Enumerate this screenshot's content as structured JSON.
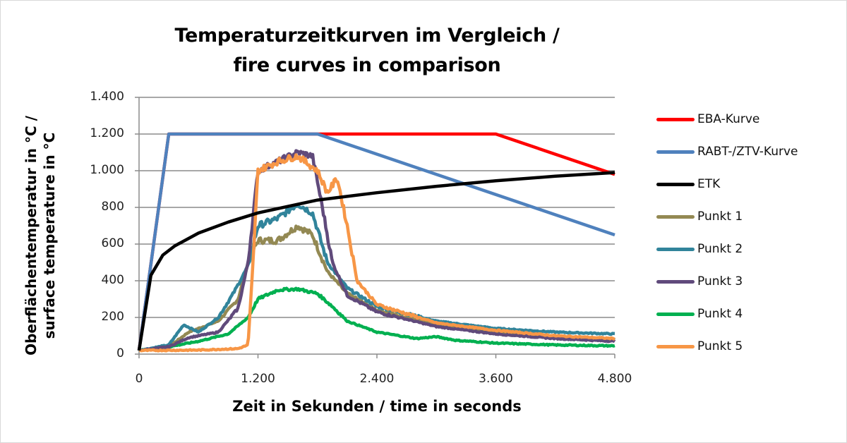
{
  "chart_data": {
    "type": "line",
    "title": "Temperaturzeitkurven im Vergleich / fire  curves in comparison",
    "title_lines": [
      "Temperaturzeitkurven im Vergleich /",
      "fire  curves in comparison"
    ],
    "xlabel": "Zeit in Sekunden / time in seconds",
    "ylabel": "Oberflächentemperatur in °C / surface temperature in °C",
    "ylabel_lines": [
      "Oberflächentemperatur in °C /",
      "surface temperature in °C"
    ],
    "xlim": [
      0,
      4800
    ],
    "ylim": [
      0,
      1400
    ],
    "x_ticks": [
      "0",
      "1.200",
      "2.400",
      "3.600",
      "4.800"
    ],
    "y_ticks": [
      "0",
      "200",
      "400",
      "600",
      "800",
      "1.000",
      "1.200",
      "1.400"
    ],
    "grid": "horizontal",
    "legend_position": "right",
    "series": [
      {
        "name": "EBA-Kurve",
        "color": "#ff0000",
        "x": [
          0,
          300,
          3600,
          4800
        ],
        "values": [
          20,
          1200,
          1200,
          980
        ]
      },
      {
        "name": "RABT-/ZTV-Kurve",
        "color": "#4f81bd",
        "x": [
          0,
          300,
          1800,
          4800
        ],
        "values": [
          20,
          1200,
          1200,
          650
        ]
      },
      {
        "name": "ETK",
        "color": "#000000",
        "x": [
          0,
          120,
          240,
          360,
          600,
          900,
          1200,
          1800,
          2400,
          3000,
          3600,
          4200,
          4800
        ],
        "values": [
          20,
          430,
          540,
          590,
          660,
          720,
          770,
          840,
          880,
          915,
          945,
          970,
          990
        ]
      },
      {
        "name": "Punkt 1",
        "color": "#938953",
        "x": [
          0,
          300,
          500,
          800,
          1000,
          1100,
          1200,
          1400,
          1600,
          1750,
          1900,
          2100,
          2400,
          3000,
          3600,
          4200,
          4800
        ],
        "values": [
          20,
          40,
          120,
          180,
          300,
          500,
          620,
          620,
          700,
          650,
          450,
          330,
          240,
          160,
          120,
          95,
          80
        ]
      },
      {
        "name": "Punkt 2",
        "color": "#31849b",
        "x": [
          0,
          300,
          450,
          600,
          800,
          950,
          1100,
          1200,
          1400,
          1600,
          1750,
          1900,
          2100,
          2400,
          3000,
          3600,
          4200,
          4800
        ],
        "values": [
          20,
          50,
          160,
          120,
          200,
          330,
          480,
          700,
          740,
          820,
          770,
          500,
          360,
          260,
          180,
          140,
          120,
          110
        ]
      },
      {
        "name": "Punkt 3",
        "color": "#604a7b",
        "x": [
          0,
          300,
          500,
          800,
          1000,
          1100,
          1200,
          1400,
          1600,
          1750,
          1850,
          1950,
          2100,
          2400,
          3000,
          3600,
          4200,
          4800
        ],
        "values": [
          20,
          40,
          90,
          120,
          250,
          500,
          1000,
          1050,
          1100,
          1080,
          800,
          500,
          320,
          230,
          150,
          110,
          85,
          70
        ]
      },
      {
        "name": "Punkt 4",
        "color": "#00b050",
        "x": [
          0,
          300,
          600,
          900,
          1100,
          1200,
          1400,
          1600,
          1800,
          1950,
          2100,
          2400,
          2800,
          3000,
          3200,
          3600,
          4200,
          4800
        ],
        "values": [
          20,
          40,
          70,
          110,
          200,
          300,
          350,
          355,
          330,
          260,
          180,
          120,
          85,
          95,
          75,
          60,
          50,
          45
        ]
      },
      {
        "name": "Punkt 5",
        "color": "#f79646",
        "x": [
          0,
          600,
          1000,
          1100,
          1150,
          1200,
          1400,
          1600,
          1800,
          1900,
          2000,
          2100,
          2200,
          2400,
          3000,
          3600,
          4200,
          4800
        ],
        "values": [
          20,
          22,
          30,
          50,
          500,
          1000,
          1050,
          1080,
          1000,
          880,
          960,
          700,
          400,
          270,
          170,
          130,
          100,
          85
        ]
      }
    ]
  }
}
